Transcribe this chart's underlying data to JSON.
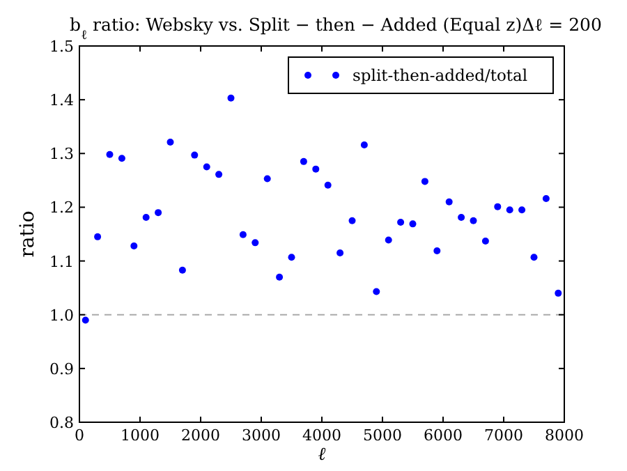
{
  "chart_data": {
    "type": "scatter",
    "title": "b$_{ℓ}$ ratio: Websky vs. Split − then − Added (Equal z)Δℓ = 200",
    "xlabel": "ℓ",
    "ylabel": "ratio",
    "x": [
      100,
      300,
      500,
      700,
      900,
      1100,
      1300,
      1500,
      1700,
      1900,
      2100,
      2300,
      2500,
      2700,
      2900,
      3100,
      3300,
      3500,
      3700,
      3900,
      4100,
      4300,
      4500,
      4700,
      4900,
      5100,
      5300,
      5500,
      5700,
      5900,
      6100,
      6300,
      6500,
      6700,
      6900,
      7100,
      7300,
      7500,
      7700,
      7900
    ],
    "series": [
      {
        "name": "split-then-added/total",
        "color": "#0000ff",
        "values": [
          0.99,
          1.145,
          1.298,
          1.291,
          1.128,
          1.181,
          1.19,
          1.321,
          1.083,
          1.297,
          1.275,
          1.261,
          1.403,
          1.149,
          1.134,
          1.253,
          1.07,
          1.107,
          1.285,
          1.271,
          1.241,
          1.115,
          1.175,
          1.316,
          1.043,
          1.139,
          1.172,
          1.169,
          1.248,
          1.119,
          1.21,
          1.181,
          1.175,
          1.137,
          1.201,
          1.195,
          1.195,
          1.107,
          1.216,
          1.04
        ]
      }
    ],
    "xlim": [
      0,
      8000
    ],
    "xticks": [
      0,
      1000,
      2000,
      3000,
      4000,
      5000,
      6000,
      7000,
      8000
    ],
    "ylim": [
      0.8,
      1.5
    ],
    "yticks": [
      {
        "value": 0.8,
        "label": "0.8"
      },
      {
        "value": 0.9,
        "label": "0.9"
      },
      {
        "value": 1.0,
        "label": "1.0"
      },
      {
        "value": 1.1,
        "label": "1.1"
      },
      {
        "value": 1.2,
        "label": "1.2"
      },
      {
        "value": 1.3,
        "label": "1.3"
      },
      {
        "value": 1.4,
        "label": "1.4"
      },
      {
        "value": 1.5,
        "label": "1.5"
      }
    ],
    "ref_lines": [
      {
        "axis": "y",
        "value": 1.0,
        "color": "#aaaaaa",
        "line_style": "dashed"
      }
    ],
    "legend": "top right",
    "marker": "circle",
    "grid": false
  }
}
